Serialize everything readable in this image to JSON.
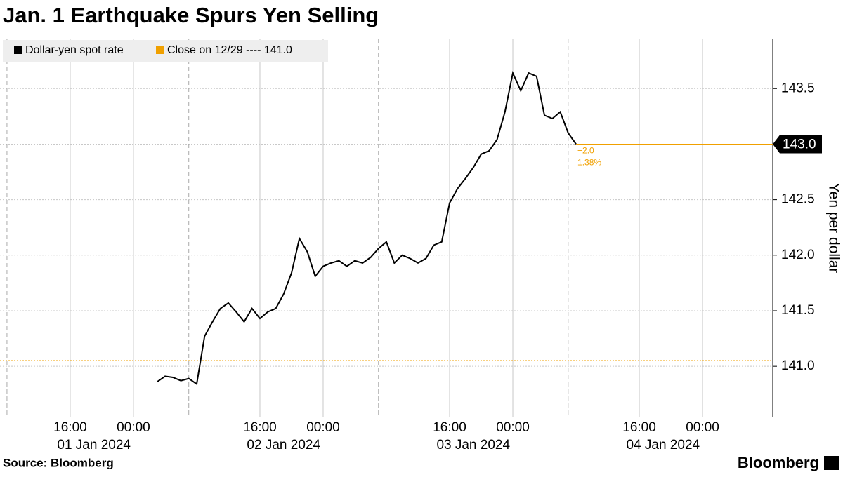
{
  "chart_data": {
    "type": "line",
    "title": "Jan. 1 Earthquake Spurs Yen Selling",
    "source": "Source: Bloomberg",
    "brand": "Bloomberg",
    "ylabel": "Yen per dollar",
    "x": [
      "2024-01-02 03:00",
      "2024-01-02 04:00",
      "2024-01-02 05:00",
      "2024-01-02 06:00",
      "2024-01-02 07:00",
      "2024-01-02 08:00",
      "2024-01-02 09:00",
      "2024-01-02 10:00",
      "2024-01-02 11:00",
      "2024-01-02 12:00",
      "2024-01-02 13:00",
      "2024-01-02 14:00",
      "2024-01-02 15:00",
      "2024-01-02 16:00",
      "2024-01-02 17:00",
      "2024-01-02 18:00",
      "2024-01-02 19:00",
      "2024-01-02 20:00",
      "2024-01-02 21:00",
      "2024-01-02 22:00",
      "2024-01-02 23:00",
      "2024-01-03 00:00",
      "2024-01-03 01:00",
      "2024-01-03 02:00",
      "2024-01-03 03:00",
      "2024-01-03 04:00",
      "2024-01-03 05:00",
      "2024-01-03 06:00",
      "2024-01-03 07:00",
      "2024-01-03 08:00",
      "2024-01-03 09:00",
      "2024-01-03 10:00",
      "2024-01-03 11:00",
      "2024-01-03 12:00",
      "2024-01-03 13:00",
      "2024-01-03 14:00",
      "2024-01-03 15:00",
      "2024-01-03 16:00",
      "2024-01-03 17:00",
      "2024-01-03 18:00",
      "2024-01-03 19:00",
      "2024-01-03 20:00",
      "2024-01-03 21:00",
      "2024-01-03 22:00",
      "2024-01-03 23:00",
      "2024-01-04 00:00",
      "2024-01-04 01:00",
      "2024-01-04 02:00",
      "2024-01-04 03:00",
      "2024-01-04 04:00",
      "2024-01-04 05:00",
      "2024-01-04 06:00",
      "2024-01-04 07:00",
      "2024-01-04 08:00"
    ],
    "series": [
      {
        "name": "Dollar-yen spot rate",
        "color": "#000000",
        "values": [
          140.86,
          140.91,
          140.9,
          140.87,
          140.89,
          140.84,
          141.27,
          141.4,
          141.52,
          141.57,
          141.49,
          141.4,
          141.52,
          141.43,
          141.49,
          141.52,
          141.65,
          141.84,
          142.15,
          142.03,
          141.81,
          141.9,
          141.93,
          141.95,
          141.9,
          141.95,
          141.93,
          141.98,
          142.06,
          142.12,
          141.93,
          142.0,
          141.97,
          141.93,
          141.97,
          142.09,
          142.12,
          142.47,
          142.6,
          142.69,
          142.79,
          142.91,
          142.94,
          143.04,
          143.29,
          143.64,
          143.48,
          143.64,
          143.61,
          143.26,
          143.23,
          143.29,
          143.1,
          143.0
        ],
        "value_labels": [
          null,
          null,
          null,
          null,
          null,
          null,
          null,
          null,
          null,
          null,
          null,
          null,
          null,
          null,
          null,
          null,
          null,
          null,
          null,
          null,
          null,
          null,
          null,
          null,
          null,
          null,
          null,
          null,
          null,
          null,
          null,
          null,
          null,
          null,
          null,
          null,
          null,
          null,
          null,
          null,
          null,
          null,
          null,
          null,
          null,
          null,
          null,
          null,
          null,
          null,
          null,
          null,
          null,
          "143.0"
        ]
      }
    ],
    "close": {
      "name": "Close on 12/29 ---- 141.0",
      "value": 141.05,
      "color": "#f0a000"
    },
    "annotations": [
      "+2.0",
      "1.38%"
    ],
    "xlim": [
      "2024-01-01 07:07",
      "2024-01-05 08:53"
    ],
    "xticks": [
      {
        "value": "2024-01-01 16:00",
        "label": "16:00"
      },
      {
        "value": "2024-01-02 00:00",
        "label": "00:00"
      },
      {
        "value": "2024-01-02 16:00",
        "label": "16:00"
      },
      {
        "value": "2024-01-03 00:00",
        "label": "00:00"
      },
      {
        "value": "2024-01-03 16:00",
        "label": "16:00"
      },
      {
        "value": "2024-01-04 00:00",
        "label": "00:00"
      },
      {
        "value": "2024-01-04 16:00",
        "label": "16:00"
      },
      {
        "value": "2024-01-05 00:00",
        "label": "00:00"
      }
    ],
    "xtick_dates": [
      {
        "value": "2024-01-01 19:00",
        "label": "01 Jan 2024"
      },
      {
        "value": "2024-01-02 19:00",
        "label": "02 Jan 2024"
      },
      {
        "value": "2024-01-03 19:00",
        "label": "03 Jan 2024"
      },
      {
        "value": "2024-01-04 19:00",
        "label": "04 Jan 2024"
      }
    ],
    "session_breaks": [
      "2024-01-01 08:00",
      "2024-01-02 07:00",
      "2024-01-03 07:00",
      "2024-01-04 07:00"
    ],
    "ylim": [
      140.54,
      143.95
    ],
    "yticks": [
      {
        "value": 141,
        "label": "141.0"
      },
      141.5,
      {
        "value": 142,
        "label": "142.0"
      },
      142.5,
      {
        "value": 143,
        "label": "143.0"
      },
      143.5
    ],
    "grid": true
  }
}
